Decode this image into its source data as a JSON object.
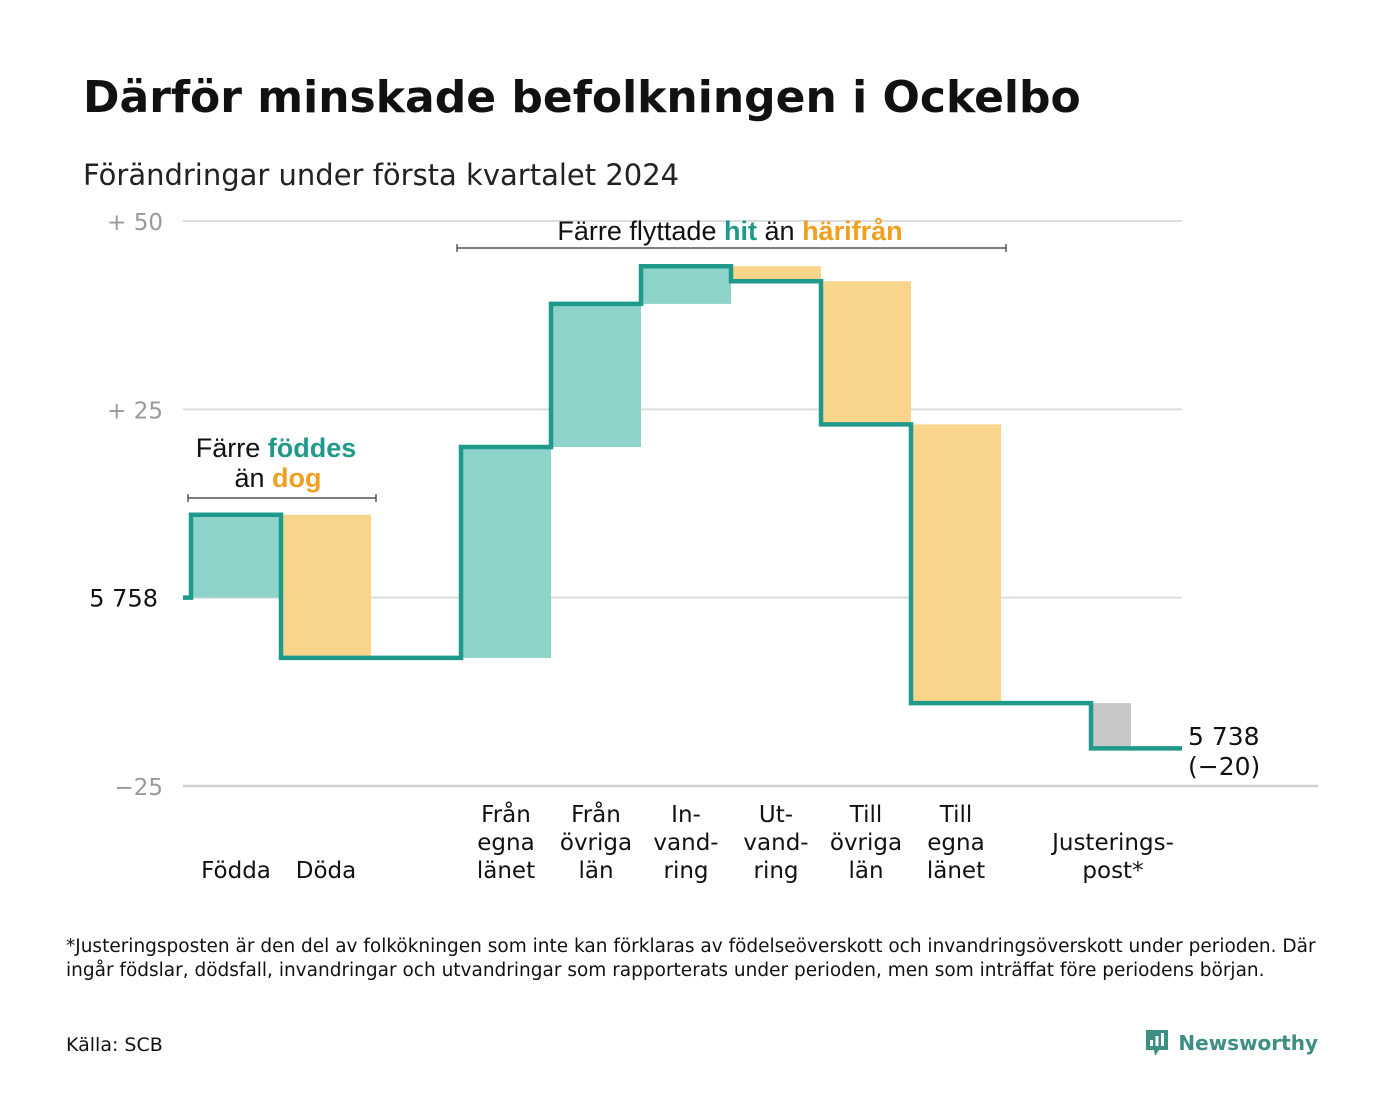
{
  "title": "Därför minskade befolkningen i Ockelbo",
  "subtitle": "Förändringar under första kvartalet 2024",
  "colors": {
    "positive": "#8dd3c9",
    "negative": "#f9d48b",
    "adjustment": "#c8c8c8",
    "line": "#1f9a8a",
    "green_text": "#1f9a8a",
    "orange_text": "#f0a020",
    "grid": "#dddddd",
    "brand": "#3d8f84"
  },
  "annotations": {
    "births": {
      "part1": "Färre ",
      "part2": "föddes",
      "part3": "än ",
      "part4": "dog"
    },
    "migration": {
      "part1": "Färre flyttade",
      "part2": "hit",
      "part3": "än",
      "part4": "härifrån"
    }
  },
  "chart_data": {
    "type": "waterfall",
    "baseline": 5758,
    "baseline_label": "5 758",
    "ylim": [
      -25,
      50
    ],
    "yticks": [
      {
        "value": 50,
        "label": "+  50"
      },
      {
        "value": 25,
        "label": "+  25"
      },
      {
        "value": 0,
        "label": "5 758"
      },
      {
        "value": -25,
        "label": "−25"
      }
    ],
    "steps": [
      {
        "category": "Födda",
        "label_lines": [
          "Födda"
        ],
        "change": 11,
        "kind": "positive"
      },
      {
        "category": "Döda",
        "label_lines": [
          "Döda"
        ],
        "change": -19,
        "kind": "negative"
      },
      {
        "category": "Från egna länet",
        "label_lines": [
          "Från",
          "egna",
          "länet"
        ],
        "change": 28,
        "kind": "positive"
      },
      {
        "category": "Från övriga län",
        "label_lines": [
          "Från",
          "övriga",
          "län"
        ],
        "change": 19,
        "kind": "positive"
      },
      {
        "category": "Invandring",
        "label_lines": [
          "In-",
          "vand-",
          "ring"
        ],
        "change": 5,
        "kind": "positive"
      },
      {
        "category": "Utvandring",
        "label_lines": [
          "Ut-",
          "vand-",
          "ring"
        ],
        "change": -2,
        "kind": "negative"
      },
      {
        "category": "Till övriga län",
        "label_lines": [
          "Till",
          "övriga",
          "län"
        ],
        "change": -19,
        "kind": "negative"
      },
      {
        "category": "Till egna länet",
        "label_lines": [
          "Till",
          "egna",
          "länet"
        ],
        "change": -37,
        "kind": "negative"
      },
      {
        "category": "Justeringspost*",
        "label_lines": [
          "Justerings-",
          "post*"
        ],
        "change": -6,
        "kind": "adjustment"
      }
    ],
    "final_value": 5738,
    "final_label": "5 738",
    "net_change_label": "(−20)"
  },
  "footnote": "*Justeringsposten är den del av folkökningen som inte kan förklaras av födelseöverskott och invandringsöverskott under perioden. Där ingår födslar, dödsfall, invandringar och utvandringar som rapporterats under perioden, men som inträffat före periodens början.",
  "source": "Källa: SCB",
  "brand": {
    "name": "Newsworthy",
    "icon": "newsworthy-logo-icon"
  }
}
